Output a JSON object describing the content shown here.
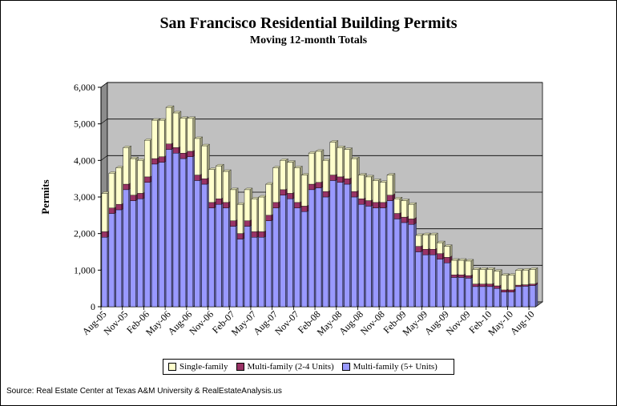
{
  "chart_data": {
    "type": "bar",
    "stacked": true,
    "title": "San Francisco Residential Building Permits",
    "subtitle": "Moving 12-month Totals",
    "ylabel": "Permits",
    "ylim": [
      0,
      6000
    ],
    "yticks": [
      "0",
      "1,000",
      "2,000",
      "3,000",
      "4,000",
      "5,000",
      "6,000"
    ],
    "grid": true,
    "legend_position": "bottom",
    "categories": [
      "Aug-05",
      "Sep-05",
      "Oct-05",
      "Nov-05",
      "Dec-05",
      "Jan-06",
      "Feb-06",
      "Mar-06",
      "Apr-06",
      "May-06",
      "Jun-06",
      "Jul-06",
      "Aug-06",
      "Sep-06",
      "Oct-06",
      "Nov-06",
      "Dec-06",
      "Jan-07",
      "Feb-07",
      "Mar-07",
      "Apr-07",
      "May-07",
      "Jun-07",
      "Jul-07",
      "Aug-07",
      "Sep-07",
      "Oct-07",
      "Nov-07",
      "Dec-07",
      "Jan-08",
      "Feb-08",
      "Mar-08",
      "Apr-08",
      "May-08",
      "Jun-08",
      "Jul-08",
      "Aug-08",
      "Sep-08",
      "Oct-08",
      "Nov-08",
      "Dec-08",
      "Jan-09",
      "Feb-09",
      "Mar-09",
      "Apr-09",
      "May-09",
      "Jun-09",
      "Jul-09",
      "Aug-09",
      "Sep-09",
      "Oct-09",
      "Nov-09",
      "Dec-09",
      "Jan-10",
      "Feb-10",
      "Mar-10",
      "Apr-10",
      "May-10",
      "Jun-10",
      "Jul-10",
      "Aug-10"
    ],
    "shown_tick_labels": [
      "Aug-05",
      "Nov-05",
      "Feb-06",
      "May-06",
      "Aug-06",
      "Nov-06",
      "Feb-07",
      "May-07",
      "Aug-07",
      "Nov-07",
      "Feb-08",
      "May-08",
      "Aug-08",
      "Nov-08",
      "Feb-09",
      "May-09",
      "Aug-09",
      "Nov-09",
      "Feb-10",
      "May-10",
      "Aug-10"
    ],
    "series": [
      {
        "name": "Multi-family (5+ Units)",
        "color": "#9999ff",
        "values": [
          1900,
          2550,
          2650,
          3200,
          2900,
          2950,
          3400,
          3900,
          3950,
          4300,
          4200,
          4050,
          4100,
          3450,
          3350,
          2700,
          2800,
          2700,
          2200,
          1850,
          2200,
          1900,
          1900,
          2350,
          2700,
          3050,
          2950,
          2700,
          2600,
          3200,
          3250,
          3000,
          3450,
          3400,
          3350,
          3000,
          2800,
          2750,
          2700,
          2700,
          2900,
          2400,
          2300,
          2250,
          1500,
          1420,
          1420,
          1300,
          1200,
          800,
          800,
          780,
          550,
          550,
          550,
          500,
          400,
          400,
          550,
          560,
          580
        ]
      },
      {
        "name": "Multi-family (2-4 Units)",
        "color": "#993366",
        "values": [
          150,
          150,
          150,
          150,
          150,
          150,
          150,
          150,
          150,
          150,
          150,
          150,
          150,
          150,
          150,
          150,
          150,
          150,
          150,
          150,
          150,
          150,
          150,
          150,
          150,
          150,
          150,
          150,
          150,
          150,
          150,
          150,
          150,
          150,
          150,
          150,
          150,
          150,
          150,
          150,
          150,
          150,
          150,
          150,
          150,
          150,
          150,
          150,
          150,
          70,
          70,
          70,
          70,
          70,
          70,
          70,
          60,
          60,
          40,
          40,
          40
        ]
      },
      {
        "name": "Single-family",
        "color": "#ffffcc",
        "values": [
          1050,
          950,
          1000,
          1000,
          1000,
          900,
          1000,
          1050,
          1000,
          1000,
          950,
          950,
          900,
          1000,
          900,
          900,
          900,
          850,
          850,
          800,
          850,
          900,
          950,
          850,
          950,
          800,
          850,
          950,
          850,
          850,
          850,
          850,
          900,
          800,
          800,
          900,
          650,
          650,
          600,
          550,
          550,
          400,
          450,
          400,
          300,
          400,
          400,
          300,
          300,
          400,
          400,
          400,
          400,
          400,
          400,
          400,
          400,
          400,
          400,
          400,
          400
        ]
      }
    ]
  },
  "source_text": "Source: Real Estate Center at Texas A&M University & RealEstateAnalysis.us"
}
